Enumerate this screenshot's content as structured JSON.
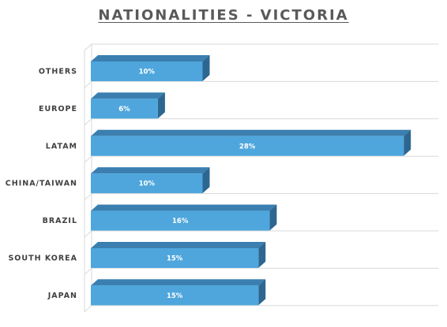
{
  "chart_data": {
    "type": "bar",
    "orientation": "horizontal",
    "style": "3d",
    "title": "NATIONALITIES - VICTORIA",
    "categories": [
      "OTHERS",
      "EUROPE",
      "LATAM",
      "CHINA/TAIWAN",
      "BRAZIL",
      "SOUTH KOREA",
      "JAPAN"
    ],
    "values": [
      10,
      6,
      28,
      10,
      16,
      15,
      15
    ],
    "data_labels": [
      "10%",
      "6%",
      "28%",
      "10%",
      "16%",
      "15%",
      "15%"
    ],
    "unit": "%",
    "xlim": [
      0,
      31
    ],
    "grid": true,
    "legend": "none",
    "colors": {
      "bar_front": "#4ea6dc",
      "bar_top": "#3b7fb0",
      "bar_side": "#2d6690",
      "grid": "#d9d9d9",
      "title": "#595959",
      "label": "#404040"
    }
  }
}
